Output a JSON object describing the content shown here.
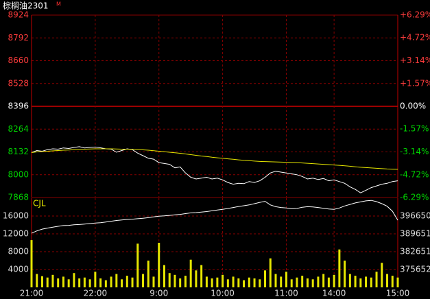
{
  "chart_data": [
    {
      "type": "line",
      "title": "棕榈油2301",
      "title_badge": "M",
      "x": [
        0,
        5,
        10,
        15,
        20,
        25,
        30,
        35,
        40,
        45,
        50,
        55,
        60,
        65,
        70,
        75,
        80,
        85,
        90,
        95,
        100,
        105,
        110,
        115,
        120,
        125,
        130,
        135,
        140,
        145,
        150,
        155,
        160,
        165,
        170,
        175,
        180,
        185,
        190,
        195,
        200,
        205,
        210,
        215,
        220,
        225,
        230,
        235,
        240,
        245,
        250,
        255,
        260,
        265,
        270,
        275,
        280,
        285,
        290,
        295,
        300,
        305,
        310,
        315,
        320,
        325,
        330,
        335,
        340,
        345
      ],
      "xlim": [
        0,
        345
      ],
      "ylim": [
        7868,
        8924
      ],
      "yticks": [
        8924,
        8792,
        8660,
        8528,
        8396,
        8264,
        8132,
        8000,
        7868
      ],
      "y2lim": [
        -6.29,
        6.29
      ],
      "y2ticks": [
        {
          "value": 6.29,
          "label": "+6.29%"
        },
        {
          "value": 4.72,
          "label": "+4.72%"
        },
        {
          "value": 3.14,
          "label": "+3.14%"
        },
        {
          "value": 1.57,
          "label": "+1.57%"
        },
        {
          "value": 0,
          "label": "0.00%"
        },
        {
          "value": -1.57,
          "label": "-1.57%"
        },
        {
          "value": -3.14,
          "label": "-3.14%"
        },
        {
          "value": -4.72,
          "label": "-4.72%"
        },
        {
          "value": -6.29,
          "label": "-6.29%"
        }
      ],
      "grid": true,
      "series": [
        {
          "color": "#ffffff",
          "values": [
            8128,
            8140,
            8136,
            8145,
            8150,
            8148,
            8155,
            8152,
            8158,
            8162,
            8155,
            8158,
            8160,
            8156,
            8150,
            8148,
            8130,
            8140,
            8150,
            8145,
            8125,
            8110,
            8095,
            8090,
            8070,
            8065,
            8060,
            8040,
            8045,
            8010,
            7985,
            7975,
            7980,
            7985,
            7975,
            7980,
            7970,
            7955,
            7945,
            7950,
            7948,
            7960,
            7955,
            7965,
            7985,
            8010,
            8020,
            8015,
            8010,
            8005,
            8000,
            7990,
            7975,
            7980,
            7972,
            7978,
            7965,
            7970,
            7960,
            7950,
            7930,
            7915,
            7895,
            7910,
            7925,
            7935,
            7945,
            7950,
            7960,
            7965
          ]
        },
        {
          "color": "#e8e800",
          "values": [
            8128,
            8132,
            8134,
            8136,
            8138,
            8140,
            8142,
            8143,
            8145,
            8147,
            8148,
            8149,
            8150,
            8150,
            8150,
            8150,
            8149,
            8148,
            8148,
            8147,
            8146,
            8144,
            8142,
            8139,
            8136,
            8133,
            8130,
            8127,
            8124,
            8120,
            8116,
            8112,
            8108,
            8105,
            8101,
            8098,
            8095,
            8092,
            8089,
            8086,
            8083,
            8081,
            8079,
            8077,
            8076,
            8075,
            8074,
            8073,
            8072,
            8071,
            8070,
            8068,
            8066,
            8064,
            8062,
            8060,
            8058,
            8056,
            8054,
            8052,
            8049,
            8046,
            8043,
            8041,
            8039,
            8037,
            8035,
            8033,
            8032,
            8031
          ]
        }
      ]
    },
    {
      "type": "bar",
      "title": "CJL",
      "x": [
        0,
        5,
        10,
        15,
        20,
        25,
        30,
        35,
        40,
        45,
        50,
        55,
        60,
        65,
        70,
        75,
        80,
        85,
        90,
        95,
        100,
        105,
        110,
        115,
        120,
        125,
        130,
        135,
        140,
        145,
        150,
        155,
        160,
        165,
        170,
        175,
        180,
        185,
        190,
        195,
        200,
        205,
        210,
        215,
        220,
        225,
        230,
        235,
        240,
        245,
        250,
        255,
        260,
        265,
        270,
        275,
        280,
        285,
        290,
        295,
        300,
        305,
        310,
        315,
        320,
        325,
        330,
        335,
        340,
        345
      ],
      "xlim": [
        0,
        345
      ],
      "xticks": [
        {
          "value": 0,
          "label": "21:00"
        },
        {
          "value": 60,
          "label": "22:00"
        },
        {
          "value": 120,
          "label": "9:00"
        },
        {
          "value": 180,
          "label": "10:00"
        },
        {
          "value": 240,
          "label": "11:00"
        },
        {
          "value": 285,
          "label": "14:00"
        },
        {
          "value": 345,
          "label": "15:00"
        }
      ],
      "ylim": [
        0,
        20000
      ],
      "yticks": [
        16000,
        12000,
        8000,
        4000
      ],
      "y2lim": [
        368653,
        403649
      ],
      "y2ticks": [
        396650,
        389651,
        382651,
        375652
      ],
      "grid": true,
      "series": [
        {
          "color": "#e6e600",
          "values": [
            10600,
            3000,
            2500,
            2200,
            2800,
            2000,
            2400,
            1800,
            3200,
            2000,
            2200,
            1800,
            3500,
            2000,
            1600,
            2400,
            3000,
            1800,
            2600,
            2200,
            9800,
            3000,
            6000,
            2400,
            10000,
            5000,
            3200,
            2800,
            2000,
            2600,
            6200,
            3800,
            5000,
            2400,
            2000,
            2200,
            2800,
            1800,
            2400,
            2000,
            1600,
            2200,
            2000,
            1800,
            3800,
            6500,
            3000,
            2400,
            3500,
            1800,
            2200,
            2600,
            2000,
            1800,
            2400,
            3000,
            2200,
            2800,
            8500,
            6000,
            3000,
            2600,
            2000,
            2400,
            2200,
            3500,
            5500,
            3000,
            2600,
            2200
          ]
        },
        {
          "color": "#ffffff",
          "axis": "y2",
          "type": "line",
          "values": [
            389900,
            390800,
            391500,
            391900,
            392300,
            392600,
            392900,
            393000,
            393200,
            393300,
            393500,
            393700,
            393900,
            394000,
            394300,
            394600,
            394900,
            395100,
            395300,
            395400,
            395600,
            395800,
            396000,
            396300,
            396600,
            396700,
            396900,
            397100,
            397300,
            397600,
            397900,
            398000,
            398200,
            398400,
            398700,
            399000,
            399300,
            399600,
            400000,
            400400,
            400700,
            401000,
            401500,
            402000,
            402400,
            401000,
            400300,
            400000,
            399800,
            399500,
            399600,
            400100,
            400300,
            400200,
            400000,
            399700,
            399400,
            399300,
            399800,
            400600,
            401200,
            401800,
            402200,
            402600,
            402800,
            402300,
            401500,
            400500,
            398500,
            395000
          ]
        }
      ]
    }
  ]
}
